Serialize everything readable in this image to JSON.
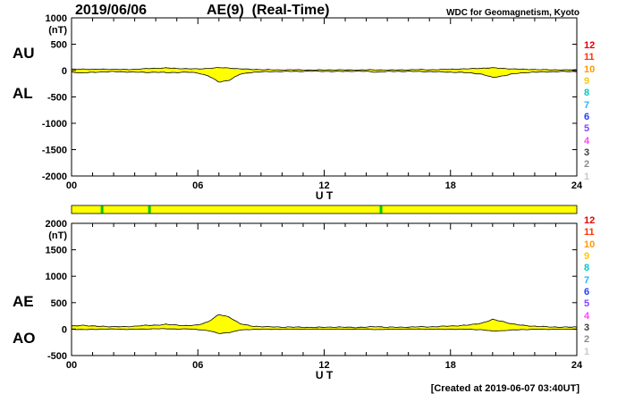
{
  "header": {
    "date": "2019/06/06",
    "title": "AE(9)  (Real-Time)",
    "source": "WDC for Geomagnetism, Kyoto"
  },
  "footer": {
    "created_note": "[Created at 2019-06-07 03:40UT]"
  },
  "panels": {
    "top": {
      "label_upper": "AU",
      "label_lower": "AL",
      "unit": "(nT)",
      "xlabel": "U T"
    },
    "bottom": {
      "label_upper": "AE",
      "label_lower": "AO",
      "unit": "(nT)",
      "xlabel": "U T"
    }
  },
  "station_scale": {
    "labels": [
      "12",
      "11",
      "10",
      "9",
      "8",
      "7",
      "6",
      "5",
      "4",
      "3",
      "2",
      "1"
    ],
    "colors": [
      "#e60000",
      "#ff3200",
      "#ff9900",
      "#ffc800",
      "#00c8c8",
      "#28b4ff",
      "#1e3cff",
      "#8246ff",
      "#ff46ff",
      "#3c3c3c",
      "#8c8c8c",
      "#c8c8c8"
    ]
  },
  "availability_bar": {
    "fill": "#ffff00",
    "border": "#000000",
    "green_color": "#00c800",
    "green_marks_hours": [
      1.45,
      3.7,
      14.7
    ]
  },
  "chart_data": [
    {
      "type": "area",
      "id": "top",
      "title": "AU / AL indices (upper panel)",
      "x_range": [
        0,
        24
      ],
      "x_step_hours": 0.5,
      "ylim": [
        -2000,
        1000
      ],
      "y_ticks": [
        1000,
        500,
        0,
        -500,
        -1000,
        -1500,
        -2000
      ],
      "x_major_ticks": [
        0,
        6,
        12,
        18,
        24
      ],
      "x_tick_labels": [
        "00",
        "06",
        "12",
        "18",
        "24"
      ],
      "xlabel": "U T",
      "unit": "(nT)",
      "band_fill": "#ffff00",
      "line_color": "#000000",
      "series": [
        {
          "name": "AU",
          "values": [
            25,
            30,
            20,
            28,
            22,
            18,
            25,
            35,
            45,
            50,
            40,
            35,
            30,
            42,
            55,
            48,
            32,
            24,
            18,
            15,
            12,
            15,
            12,
            10,
            12,
            15,
            12,
            10,
            15,
            12,
            10,
            12,
            15,
            18,
            15,
            20,
            25,
            30,
            35,
            45,
            52,
            42,
            30,
            25,
            20,
            15,
            15,
            12,
            15
          ]
        },
        {
          "name": "AL",
          "values": [
            -30,
            -45,
            -35,
            -25,
            -20,
            -25,
            -30,
            -35,
            -30,
            -40,
            -35,
            -30,
            -45,
            -100,
            -220,
            -180,
            -70,
            -35,
            -25,
            -20,
            -18,
            -15,
            -15,
            -12,
            -15,
            -18,
            -15,
            -12,
            -15,
            -30,
            -18,
            -15,
            -15,
            -18,
            -20,
            -25,
            -30,
            -35,
            -45,
            -70,
            -130,
            -100,
            -60,
            -40,
            -30,
            -25,
            -20,
            -18,
            -20
          ]
        }
      ]
    },
    {
      "type": "area",
      "id": "bottom",
      "title": "AE / AO indices (lower panel)",
      "x_range": [
        0,
        24
      ],
      "x_step_hours": 0.5,
      "ylim": [
        -500,
        2000
      ],
      "y_ticks": [
        2000,
        1500,
        1000,
        500,
        0,
        -500
      ],
      "x_major_ticks": [
        0,
        6,
        12,
        18,
        24
      ],
      "x_tick_labels": [
        "00",
        "06",
        "12",
        "18",
        "24"
      ],
      "xlabel": "U T",
      "unit": "(nT)",
      "band_fill": "#ffff00",
      "line_color": "#000000",
      "series": [
        {
          "name": "AE",
          "values": [
            55,
            75,
            55,
            53,
            45,
            45,
            55,
            70,
            75,
            90,
            75,
            65,
            75,
            142,
            275,
            228,
            102,
            60,
            48,
            42,
            38,
            38,
            35,
            32,
            35,
            40,
            35,
            32,
            38,
            48,
            36,
            35,
            38,
            44,
            42,
            50,
            58,
            68,
            82,
            115,
            182,
            142,
            92,
            68,
            55,
            45,
            40,
            36,
            40
          ]
        },
        {
          "name": "AO",
          "values": [
            -3,
            -8,
            -8,
            2,
            1,
            -4,
            -3,
            0,
            8,
            5,
            3,
            3,
            -8,
            -29,
            -83,
            -66,
            -19,
            -6,
            -4,
            -3,
            -3,
            0,
            -2,
            -1,
            -2,
            -2,
            -2,
            -1,
            0,
            -9,
            -4,
            -2,
            0,
            0,
            -3,
            -3,
            -3,
            -3,
            -5,
            -13,
            -39,
            -29,
            -15,
            -8,
            -5,
            -5,
            -3,
            -3,
            -3
          ]
        }
      ]
    }
  ]
}
